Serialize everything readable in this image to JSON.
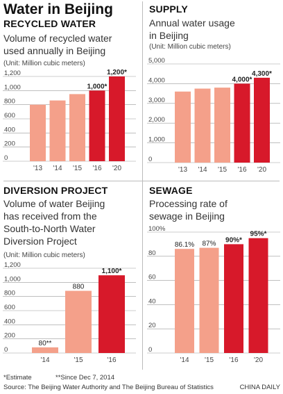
{
  "title": "Water in Beijing",
  "colors": {
    "light": "#f4a08a",
    "dark": "#d7192a"
  },
  "chart_data": [
    {
      "type": "bar",
      "panel_title": "RECYCLED WATER",
      "description": [
        "Volume of recycled water",
        "used annually in Beijing"
      ],
      "unit": "(Unit: Million cubic meters)",
      "categories": [
        "'13",
        "'14",
        "'15",
        "'16",
        "'20"
      ],
      "values": [
        800,
        860,
        950,
        1000,
        1200
      ],
      "highlight": [
        false,
        false,
        false,
        true,
        true
      ],
      "data_labels": [
        "",
        "",
        "",
        "1,000*",
        "1,200*"
      ],
      "ylim": [
        0,
        1200
      ],
      "yticks": [
        0,
        200,
        400,
        600,
        800,
        1000,
        1200
      ],
      "ytick_labels": [
        "0",
        "200",
        "400",
        "600",
        "800",
        "1,000",
        "1,200"
      ],
      "gridlines": true
    },
    {
      "type": "bar",
      "panel_title": "SUPPLY",
      "description": [
        "Annual water usage",
        "in Beijing"
      ],
      "unit": "(Unit: Million cubic meters)",
      "categories": [
        "'13",
        "'14",
        "'15",
        "'16",
        "'20"
      ],
      "values": [
        3600,
        3750,
        3800,
        4000,
        4300
      ],
      "highlight": [
        false,
        false,
        false,
        true,
        true
      ],
      "data_labels": [
        "",
        "",
        "",
        "4,000*",
        "4,300*"
      ],
      "ylim": [
        0,
        5000
      ],
      "yticks": [
        0,
        1000,
        2000,
        3000,
        4000,
        5000
      ],
      "ytick_labels": [
        "0",
        "1,000",
        "2,000",
        "3,000",
        "4,000",
        "5,000"
      ],
      "gridlines": true
    },
    {
      "type": "bar",
      "panel_title": "DIVERSION PROJECT",
      "description": [
        "Volume of water Beijing",
        "has received from the",
        "South-to-North Water",
        "Diversion Project"
      ],
      "unit": "(Unit: Million cubic meters)",
      "categories": [
        "'14",
        "'15",
        "'16"
      ],
      "values": [
        80,
        880,
        1100
      ],
      "highlight": [
        false,
        false,
        true
      ],
      "data_labels": [
        "80**",
        "880",
        "1,100*"
      ],
      "ylim": [
        0,
        1200
      ],
      "yticks": [
        0,
        200,
        400,
        600,
        800,
        1000,
        1200
      ],
      "ytick_labels": [
        "0",
        "200",
        "400",
        "600",
        "800",
        "1,000",
        "1,200"
      ],
      "gridlines": true
    },
    {
      "type": "bar",
      "panel_title": "SEWAGE",
      "description": [
        "Processing rate of",
        "sewage in Beijing"
      ],
      "unit": "",
      "categories": [
        "'14",
        "'15",
        "'16",
        "'20"
      ],
      "values": [
        86.1,
        87,
        90,
        95
      ],
      "highlight": [
        false,
        false,
        true,
        true
      ],
      "data_labels": [
        "86.1%",
        "87%",
        "90%*",
        "95%*"
      ],
      "ylim": [
        0,
        100
      ],
      "yticks": [
        0,
        20,
        40,
        60,
        80,
        100
      ],
      "ytick_labels": [
        "0",
        "20",
        "40",
        "60",
        "80",
        "100%"
      ],
      "gridlines": true
    }
  ],
  "footnotes": {
    "estimate": "*Estimate",
    "since": "**Since Dec 7, 2014"
  },
  "source": "Source: The Beijing Water Authority and The Beijing Bureau of Statistics",
  "credit": "CHINA DAILY"
}
